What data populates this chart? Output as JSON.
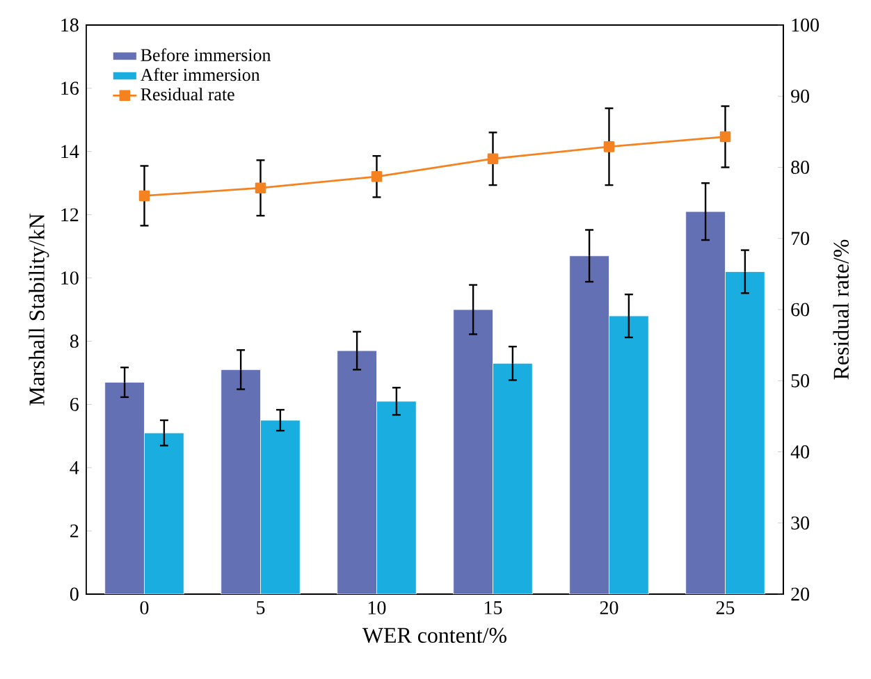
{
  "chart_data": {
    "type": "bar",
    "xlabel": "WER content/%",
    "ylabel": "Marshall Stability/kN",
    "y2label": "Residual rate/%",
    "categories": [
      "0",
      "5",
      "10",
      "15",
      "20",
      "25"
    ],
    "series": [
      {
        "name": "Before immersion",
        "color": "#6470b4",
        "values": [
          6.7,
          7.1,
          7.7,
          9.0,
          10.7,
          12.1
        ],
        "errors": [
          0.47,
          0.62,
          0.6,
          0.78,
          0.82,
          0.9
        ]
      },
      {
        "name": "After immersion",
        "color": "#1aaee0",
        "values": [
          5.1,
          5.5,
          6.1,
          7.3,
          8.8,
          10.2
        ],
        "errors": [
          0.4,
          0.33,
          0.43,
          0.53,
          0.68,
          0.68
        ]
      },
      {
        "name": "Residual rate",
        "color": "#f58220",
        "type": "line",
        "axis": "y2",
        "marker": "square",
        "values": [
          76.0,
          77.1,
          78.7,
          81.2,
          82.9,
          84.3
        ],
        "errors": [
          4.2,
          3.9,
          2.9,
          3.7,
          5.4,
          4.3
        ]
      }
    ],
    "ylim": [
      0,
      18
    ],
    "yticks": [
      0,
      2,
      4,
      6,
      8,
      10,
      12,
      14,
      16,
      18
    ],
    "y2lim": [
      20,
      100
    ],
    "y2ticks": [
      20,
      30,
      40,
      50,
      60,
      70,
      80,
      90,
      100
    ],
    "legend": "top left"
  }
}
